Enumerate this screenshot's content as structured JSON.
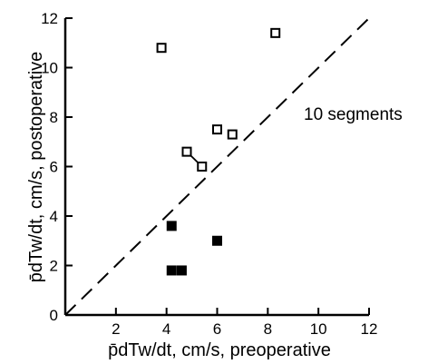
{
  "chart_data": {
    "type": "scatter",
    "title": "",
    "xlabel": "p̄dTw/dt, cm/s, preoperative",
    "ylabel": "p̄dTw/dt, cm/s, postoperative",
    "xlim": [
      0,
      12
    ],
    "ylim": [
      0,
      12
    ],
    "x_ticks": [
      "2",
      "4",
      "6",
      "8",
      "10",
      "12"
    ],
    "y_ticks": [
      "0",
      "2",
      "4",
      "6",
      "8",
      "10",
      "12"
    ],
    "grid": false,
    "annotation": "10 segments",
    "identity_line": {
      "style": "dashed",
      "from": [
        0,
        0
      ],
      "to": [
        12,
        12
      ]
    },
    "series": [
      {
        "marker": "open-square",
        "points": [
          {
            "x": 3.8,
            "y": 10.8
          },
          {
            "x": 8.3,
            "y": 11.4
          },
          {
            "x": 6.0,
            "y": 7.5
          },
          {
            "x": 6.6,
            "y": 7.3
          },
          {
            "x": 4.8,
            "y": 6.6
          },
          {
            "x": 5.4,
            "y": 6.0
          }
        ]
      },
      {
        "marker": "filled-square",
        "points": [
          {
            "x": 4.2,
            "y": 3.6
          },
          {
            "x": 6.0,
            "y": 3.0
          },
          {
            "x": 4.2,
            "y": 1.8
          },
          {
            "x": 4.6,
            "y": 1.8
          }
        ]
      }
    ],
    "connectors": [
      {
        "from": [
          4.8,
          6.6
        ],
        "to": [
          5.4,
          6.0
        ]
      }
    ]
  }
}
